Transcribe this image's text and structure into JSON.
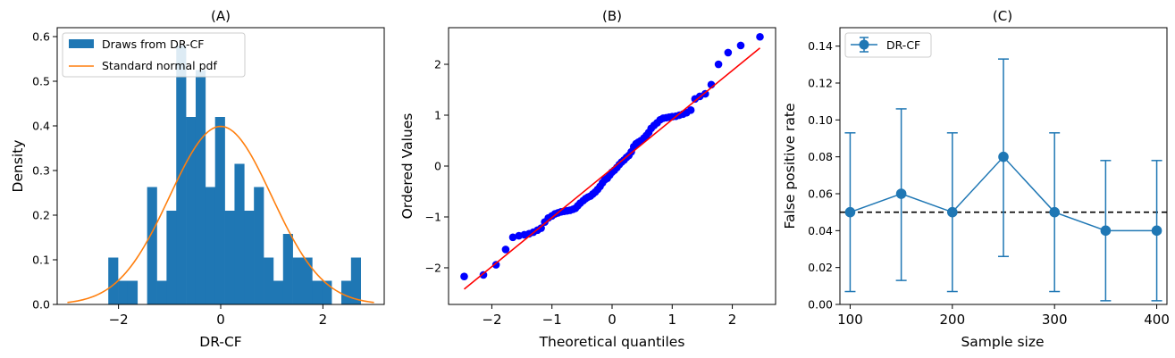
{
  "chart_data": [
    {
      "type": "histogram",
      "title": "(A)",
      "xlabel": "DR-CF",
      "ylabel": "Density",
      "xlim": [
        -3.2,
        3.2
      ],
      "ylim": [
        0,
        0.62
      ],
      "xticks": [
        -2,
        0,
        2
      ],
      "yticks": [
        0.0,
        0.1,
        0.2,
        0.3,
        0.4,
        0.5,
        0.6
      ],
      "bin_start": -2.2,
      "bin_width": 0.19,
      "densities": [
        0.105,
        0.053,
        0.053,
        0.0,
        0.263,
        0.053,
        0.21,
        0.58,
        0.42,
        0.525,
        0.263,
        0.42,
        0.21,
        0.315,
        0.21,
        0.263,
        0.105,
        0.053,
        0.158,
        0.105,
        0.105,
        0.053,
        0.053,
        0.0,
        0.053,
        0.105
      ],
      "pdf_curve": {
        "mean": 0,
        "sd": 1,
        "x_range": [
          -3,
          3
        ]
      },
      "legend": {
        "placement": "upper-left",
        "entries": [
          {
            "label": "Draws from DR-CF",
            "color": "#1f77b4",
            "kind": "patch"
          },
          {
            "label": "Standard normal pdf",
            "color": "#ff7f0e",
            "kind": "line"
          }
        ]
      }
    },
    {
      "type": "scatter",
      "title": "(B)",
      "xlabel": "Theoretical quantiles",
      "ylabel": "Ordered Values",
      "xlim": [
        -2.72,
        2.72
      ],
      "ylim": [
        -2.72,
        2.72
      ],
      "xticks": [
        -2,
        -1,
        0,
        1,
        2
      ],
      "yticks": [
        -2,
        -1,
        0,
        1,
        2
      ],
      "points": [
        [
          -2.46,
          -2.17
        ],
        [
          -2.14,
          -2.14
        ],
        [
          -1.93,
          -1.94
        ],
        [
          -1.77,
          -1.64
        ],
        [
          -1.65,
          -1.4
        ],
        [
          -1.55,
          -1.37
        ],
        [
          -1.46,
          -1.35
        ],
        [
          -1.38,
          -1.33
        ],
        [
          -1.31,
          -1.3
        ],
        [
          -1.24,
          -1.26
        ],
        [
          -1.18,
          -1.22
        ],
        [
          -1.12,
          -1.1
        ],
        [
          -1.06,
          -1.02
        ],
        [
          -1.0,
          -0.98
        ],
        [
          -0.95,
          -0.94
        ],
        [
          -0.9,
          -0.92
        ],
        [
          -0.85,
          -0.9
        ],
        [
          -0.8,
          -0.89
        ],
        [
          -0.75,
          -0.88
        ],
        [
          -0.7,
          -0.87
        ],
        [
          -0.65,
          -0.85
        ],
        [
          -0.61,
          -0.83
        ],
        [
          -0.57,
          -0.78
        ],
        [
          -0.53,
          -0.73
        ],
        [
          -0.48,
          -0.68
        ],
        [
          -0.44,
          -0.64
        ],
        [
          -0.4,
          -0.61
        ],
        [
          -0.36,
          -0.59
        ],
        [
          -0.32,
          -0.55
        ],
        [
          -0.28,
          -0.51
        ],
        [
          -0.24,
          -0.46
        ],
        [
          -0.2,
          -0.4
        ],
        [
          -0.16,
          -0.33
        ],
        [
          -0.12,
          -0.27
        ],
        [
          -0.08,
          -0.24
        ],
        [
          -0.04,
          -0.18
        ],
        [
          0.0,
          -0.12
        ],
        [
          0.04,
          -0.08
        ],
        [
          0.08,
          -0.03
        ],
        [
          0.12,
          0.03
        ],
        [
          0.16,
          0.08
        ],
        [
          0.2,
          0.12
        ],
        [
          0.24,
          0.17
        ],
        [
          0.28,
          0.21
        ],
        [
          0.32,
          0.28
        ],
        [
          0.36,
          0.38
        ],
        [
          0.4,
          0.44
        ],
        [
          0.44,
          0.47
        ],
        [
          0.48,
          0.5
        ],
        [
          0.53,
          0.55
        ],
        [
          0.57,
          0.6
        ],
        [
          0.61,
          0.66
        ],
        [
          0.65,
          0.74
        ],
        [
          0.7,
          0.8
        ],
        [
          0.75,
          0.85
        ],
        [
          0.8,
          0.91
        ],
        [
          0.85,
          0.94
        ],
        [
          0.9,
          0.95
        ],
        [
          0.95,
          0.96
        ],
        [
          1.0,
          0.97
        ],
        [
          1.06,
          0.98
        ],
        [
          1.12,
          1.0
        ],
        [
          1.18,
          1.02
        ],
        [
          1.24,
          1.05
        ],
        [
          1.31,
          1.1
        ],
        [
          1.38,
          1.32
        ],
        [
          1.46,
          1.37
        ],
        [
          1.55,
          1.42
        ],
        [
          1.65,
          1.6
        ],
        [
          1.77,
          2.0
        ],
        [
          1.93,
          2.23
        ],
        [
          2.14,
          2.37
        ],
        [
          2.46,
          2.54
        ]
      ],
      "fit_line": {
        "x": [
          -2.46,
          2.46
        ],
        "y": [
          -2.42,
          2.32
        ],
        "color": "#ff0000"
      },
      "point_color": "#0000ff"
    },
    {
      "type": "line",
      "title": "(C)",
      "xlabel": "Sample size",
      "ylabel": "False positive rate",
      "xlim": [
        90,
        410
      ],
      "ylim": [
        0,
        0.15
      ],
      "xticks": [
        100,
        200,
        300,
        400
      ],
      "yticks": [
        0.0,
        0.02,
        0.04,
        0.06,
        0.08,
        0.1,
        0.12,
        0.14
      ],
      "series": [
        {
          "name": "DR-CF",
          "color": "#1f77b4",
          "x": [
            100,
            150,
            200,
            250,
            300,
            350,
            400
          ],
          "y": [
            0.05,
            0.06,
            0.05,
            0.08,
            0.05,
            0.04,
            0.04
          ],
          "err_low": [
            0.007,
            0.013,
            0.007,
            0.026,
            0.007,
            0.002,
            0.002
          ],
          "err_high": [
            0.093,
            0.106,
            0.093,
            0.133,
            0.093,
            0.078,
            0.078
          ]
        }
      ],
      "reference_line": {
        "y": 0.05,
        "style": "dashed",
        "color": "#000000"
      },
      "legend": {
        "placement": "upper-left"
      }
    }
  ]
}
